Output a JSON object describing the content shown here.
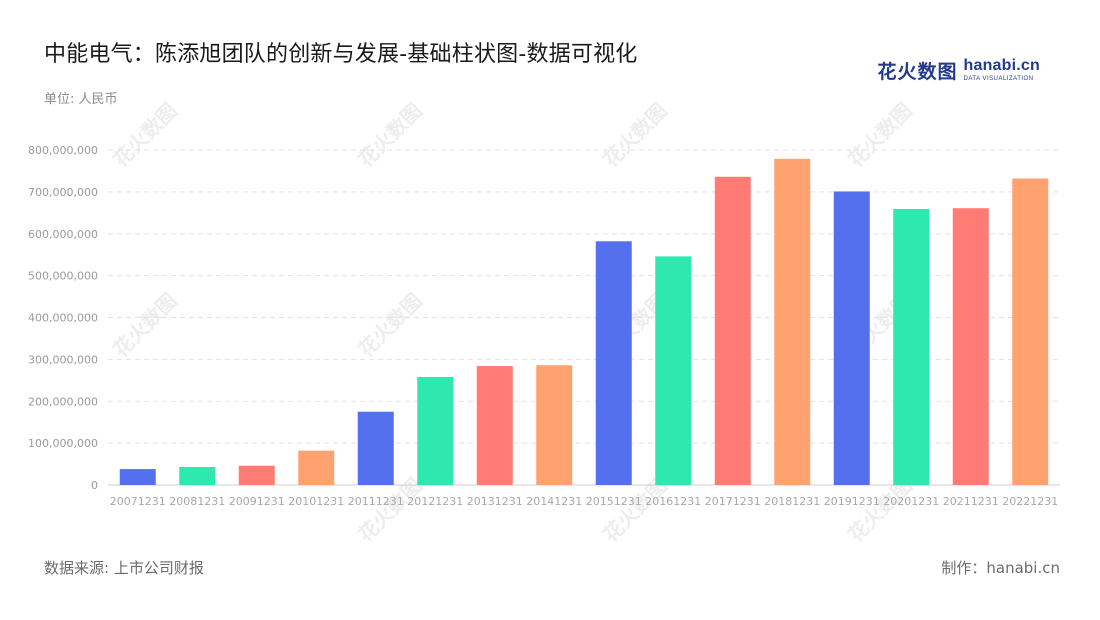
{
  "header": {
    "title": "中能电气：陈添旭团队的创新与发展-基础柱状图-数据可视化",
    "unit": "单位: 人民币"
  },
  "logo": {
    "cn_text": "花火数图",
    "en_text": "hanabi.cn",
    "en_sub": "DATA VISUALIZATION",
    "color": "#243a8f"
  },
  "footer": {
    "source": "数据来源: 上市公司财报",
    "credit": "制作：hanabi.cn"
  },
  "watermark": {
    "text": "花火数图"
  },
  "chart_data": {
    "type": "bar",
    "categories": [
      "20071231",
      "20081231",
      "20091231",
      "20101231",
      "20111231",
      "20121231",
      "20131231",
      "20141231",
      "20151231",
      "20161231",
      "20171231",
      "20181231",
      "20191231",
      "20201231",
      "20211231",
      "20221231"
    ],
    "values": [
      38000000,
      43000000,
      46000000,
      82000000,
      175000000,
      258000000,
      284000000,
      286000000,
      582000000,
      546000000,
      736000000,
      779000000,
      701000000,
      659000000,
      661000000,
      732000000
    ],
    "colors": [
      "#5470ee",
      "#2ee8b0",
      "#ff7b73",
      "#ffa270"
    ],
    "ylim": [
      0,
      800000000
    ],
    "yticks": [
      0,
      100000000,
      200000000,
      300000000,
      400000000,
      500000000,
      600000000,
      700000000,
      800000000
    ],
    "ytick_labels": [
      "0",
      "100,000,000",
      "200,000,000",
      "300,000,000",
      "400,000,000",
      "500,000,000",
      "600,000,000",
      "700,000,000",
      "800,000,000"
    ],
    "grid": true,
    "legend": "none",
    "title": "中能电气：陈添旭团队的创新与发展-基础柱状图-数据可视化",
    "xlabel": "",
    "ylabel": ""
  }
}
